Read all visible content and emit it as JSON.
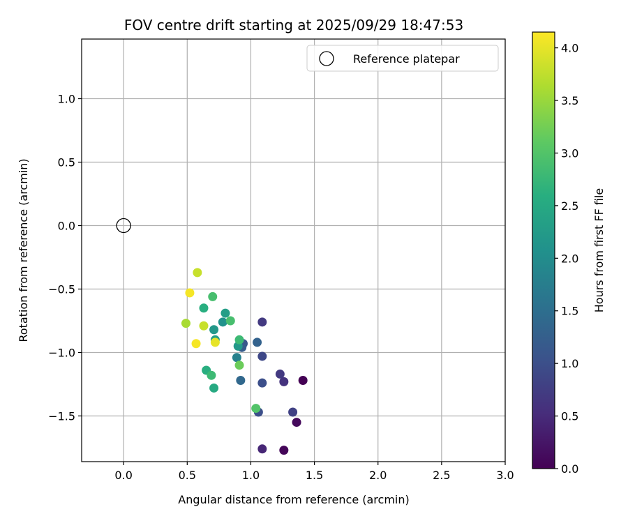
{
  "chart_data": {
    "type": "scatter",
    "title": "FOV centre drift starting at 2025/09/29 18:47:53",
    "xlabel": "Angular distance from reference (arcmin)",
    "ylabel": "Rotation from reference (arcmin)",
    "xlim": [
      -0.33,
      3.0
    ],
    "ylim": [
      -1.86,
      1.47
    ],
    "xticks": [
      0.0,
      0.5,
      1.0,
      1.5,
      2.0,
      2.5,
      3.0
    ],
    "xtick_labels": [
      "0.0",
      "0.5",
      "1.0",
      "1.5",
      "2.0",
      "2.5",
      "3.0"
    ],
    "yticks": [
      -1.5,
      -1.0,
      -0.5,
      0.0,
      0.5,
      1.0
    ],
    "ytick_labels": [
      "−1.5",
      "−1.0",
      "−0.5",
      "0.0",
      "0.5",
      "1.0"
    ],
    "grid": true,
    "legend": {
      "position": "top-right",
      "label": "Reference platepar"
    },
    "reference_point": {
      "x": 0.0,
      "y": 0.0
    },
    "colorbar": {
      "label": "Hours from first FF file",
      "range": [
        0.0,
        4.15
      ],
      "ticks": [
        0.0,
        0.5,
        1.0,
        1.5,
        2.0,
        2.5,
        3.0,
        3.5,
        4.0
      ],
      "tick_labels": [
        "0.0",
        "0.5",
        "1.0",
        "1.5",
        "2.0",
        "2.5",
        "3.0",
        "3.5",
        "4.0"
      ],
      "colormap": "viridis"
    },
    "points": [
      {
        "x": 1.41,
        "y": -1.22,
        "hours": 0.0
      },
      {
        "x": 1.26,
        "y": -1.77,
        "hours": 0.05
      },
      {
        "x": 1.36,
        "y": -1.55,
        "hours": 0.1
      },
      {
        "x": 1.09,
        "y": -1.76,
        "hours": 0.45
      },
      {
        "x": 1.26,
        "y": -1.23,
        "hours": 0.6
      },
      {
        "x": 1.23,
        "y": -1.17,
        "hours": 0.7
      },
      {
        "x": 1.33,
        "y": -1.47,
        "hours": 0.8
      },
      {
        "x": 1.09,
        "y": -0.76,
        "hours": 0.7
      },
      {
        "x": 1.09,
        "y": -1.03,
        "hours": 0.9
      },
      {
        "x": 1.06,
        "y": -1.47,
        "hours": 1.0
      },
      {
        "x": 1.09,
        "y": -1.24,
        "hours": 1.0
      },
      {
        "x": 0.94,
        "y": -0.93,
        "hours": 1.1
      },
      {
        "x": 0.93,
        "y": -0.96,
        "hours": 1.2
      },
      {
        "x": 1.05,
        "y": -0.92,
        "hours": 1.3
      },
      {
        "x": 0.92,
        "y": -1.22,
        "hours": 1.4
      },
      {
        "x": 0.89,
        "y": -1.04,
        "hours": 1.8
      },
      {
        "x": 0.78,
        "y": -0.76,
        "hours": 2.1
      },
      {
        "x": 0.8,
        "y": -0.69,
        "hours": 2.3
      },
      {
        "x": 0.71,
        "y": -0.82,
        "hours": 2.2
      },
      {
        "x": 0.72,
        "y": -0.9,
        "hours": 2.3
      },
      {
        "x": 0.9,
        "y": -0.95,
        "hours": 2.2
      },
      {
        "x": 0.71,
        "y": -1.28,
        "hours": 2.5
      },
      {
        "x": 0.65,
        "y": -1.14,
        "hours": 2.6
      },
      {
        "x": 0.69,
        "y": -1.18,
        "hours": 2.8
      },
      {
        "x": 0.63,
        "y": -0.65,
        "hours": 2.6
      },
      {
        "x": 0.7,
        "y": -0.56,
        "hours": 2.9
      },
      {
        "x": 0.84,
        "y": -0.75,
        "hours": 2.9
      },
      {
        "x": 0.91,
        "y": -0.9,
        "hours": 2.8
      },
      {
        "x": 0.91,
        "y": -1.1,
        "hours": 3.2
      },
      {
        "x": 1.04,
        "y": -1.44,
        "hours": 3.0
      },
      {
        "x": 0.49,
        "y": -0.77,
        "hours": 3.6
      },
      {
        "x": 0.58,
        "y": -0.37,
        "hours": 3.8
      },
      {
        "x": 0.63,
        "y": -0.79,
        "hours": 3.8
      },
      {
        "x": 0.52,
        "y": -0.53,
        "hours": 4.1
      },
      {
        "x": 0.57,
        "y": -0.93,
        "hours": 4.1
      },
      {
        "x": 0.72,
        "y": -0.92,
        "hours": 4.0
      }
    ]
  }
}
